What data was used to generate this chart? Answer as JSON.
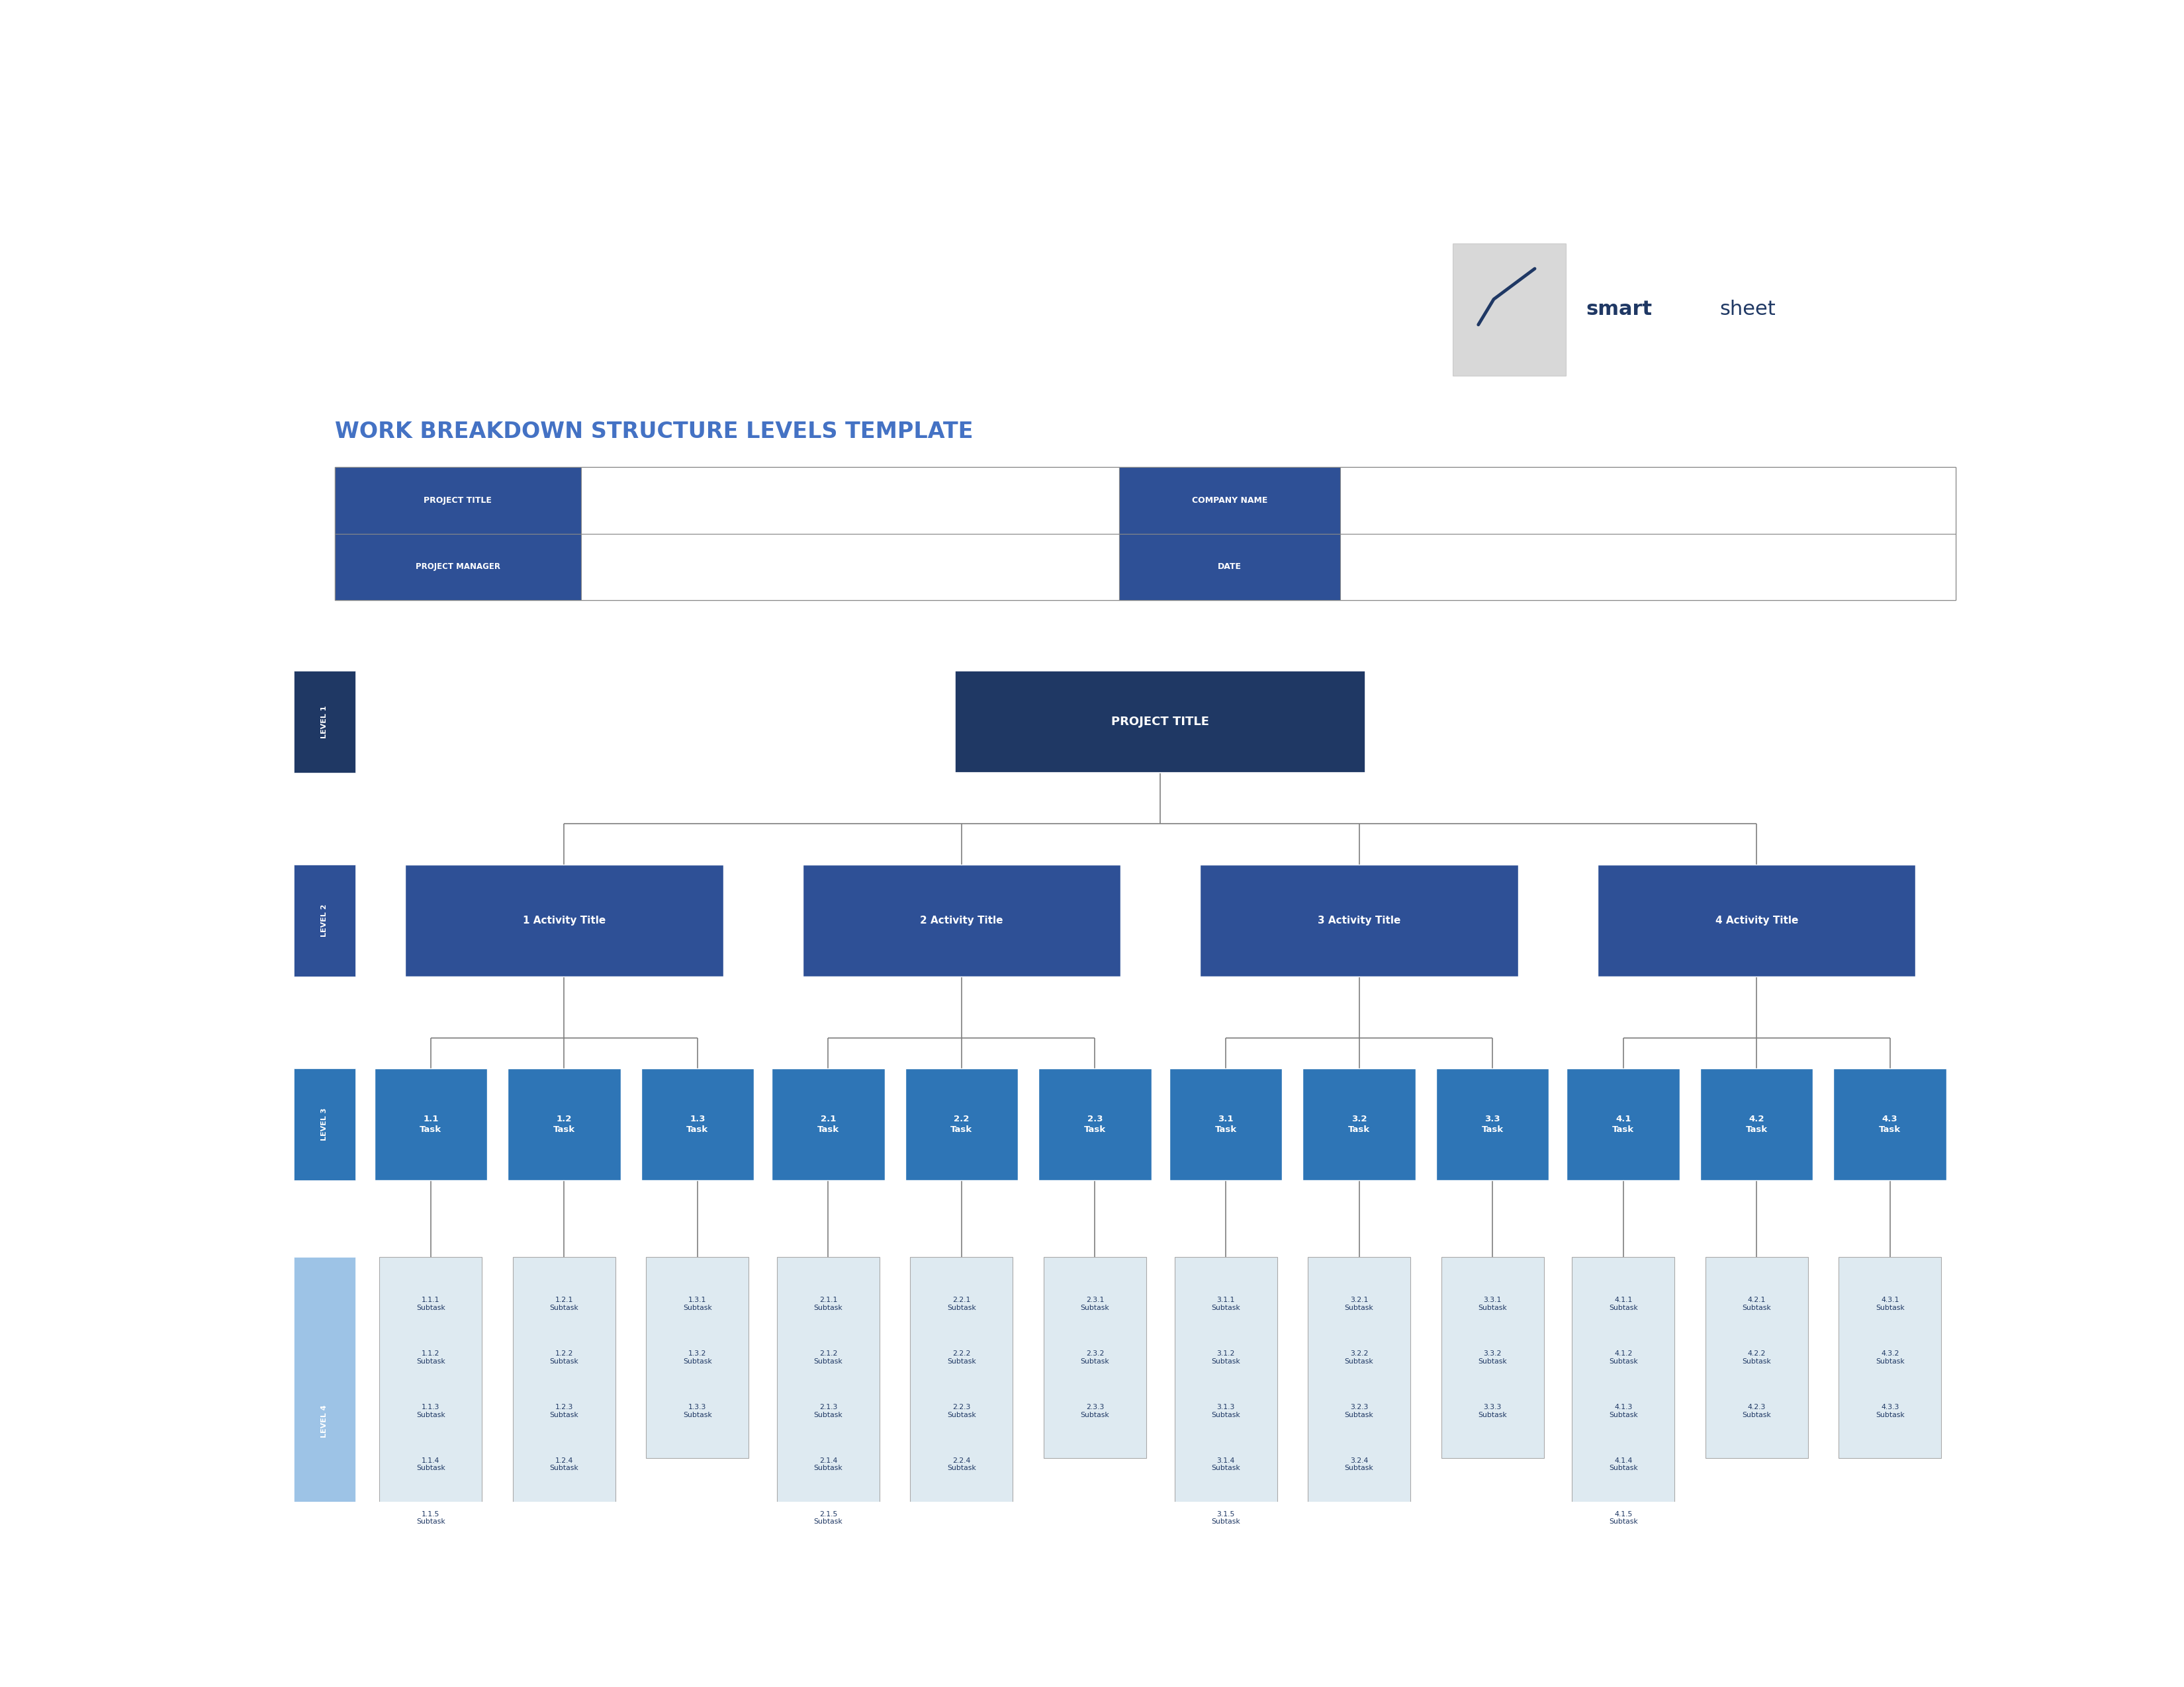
{
  "title": "WORK BREAKDOWN STRUCTURE LEVELS TEMPLATE",
  "title_color": "#4472C4",
  "background_color": "#FFFFFF",
  "dark_blue": "#1F3864",
  "medium_blue": "#2E5096",
  "level3_blue": "#2E75B6",
  "light_blue": "#9DC3E6",
  "lighter_blue": "#C5DCF0",
  "lightest_blue": "#DEEAF1",
  "connector_color": "#7F7F7F",
  "project_title": "PROJECT TITLE",
  "activities": [
    "1 Activity Title",
    "2 Activity Title",
    "3 Activity Title",
    "4 Activity Title"
  ],
  "tasks": [
    [
      "1.1\nTask",
      "1.2\nTask",
      "1.3\nTask"
    ],
    [
      "2.1\nTask",
      "2.2\nTask",
      "2.3\nTask"
    ],
    [
      "3.1\nTask",
      "3.2\nTask",
      "3.3\nTask"
    ],
    [
      "4.1\nTask",
      "4.2\nTask",
      "4.3\nTask"
    ]
  ],
  "subtasks": [
    [
      [
        "1.1.1\nSubtask",
        "1.1.2\nSubtask",
        "1.1.3\nSubtask",
        "1.1.4\nSubtask",
        "1.1.5\nSubtask"
      ],
      [
        "1.2.1\nSubtask",
        "1.2.2\nSubtask",
        "1.2.3\nSubtask",
        "1.2.4\nSubtask"
      ],
      [
        "1.3.1\nSubtask",
        "1.3.2\nSubtask",
        "1.3.3\nSubtask"
      ]
    ],
    [
      [
        "2.1.1\nSubtask",
        "2.1.2\nSubtask",
        "2.1.3\nSubtask",
        "2.1.4\nSubtask",
        "2.1.5\nSubtask"
      ],
      [
        "2.2.1\nSubtask",
        "2.2.2\nSubtask",
        "2.2.3\nSubtask",
        "2.2.4\nSubtask"
      ],
      [
        "2.3.1\nSubtask",
        "2.3.2\nSubtask",
        "2.3.3\nSubtask"
      ]
    ],
    [
      [
        "3.1.1\nSubtask",
        "3.1.2\nSubtask",
        "3.1.3\nSubtask",
        "3.1.4\nSubtask",
        "3.1.5\nSubtask"
      ],
      [
        "3.2.1\nSubtask",
        "3.2.2\nSubtask",
        "3.2.3\nSubtask",
        "3.2.4\nSubtask"
      ],
      [
        "3.3.1\nSubtask",
        "3.3.2\nSubtask",
        "3.3.3\nSubtask"
      ]
    ],
    [
      [
        "4.1.1\nSubtask",
        "4.1.2\nSubtask",
        "4.1.3\nSubtask",
        "4.1.4\nSubtask",
        "4.1.5\nSubtask"
      ],
      [
        "4.2.1\nSubtask",
        "4.2.2\nSubtask",
        "4.2.3\nSubtask"
      ],
      [
        "4.3.1\nSubtask",
        "4.3.2\nSubtask",
        "4.3.3\nSubtask"
      ]
    ]
  ]
}
